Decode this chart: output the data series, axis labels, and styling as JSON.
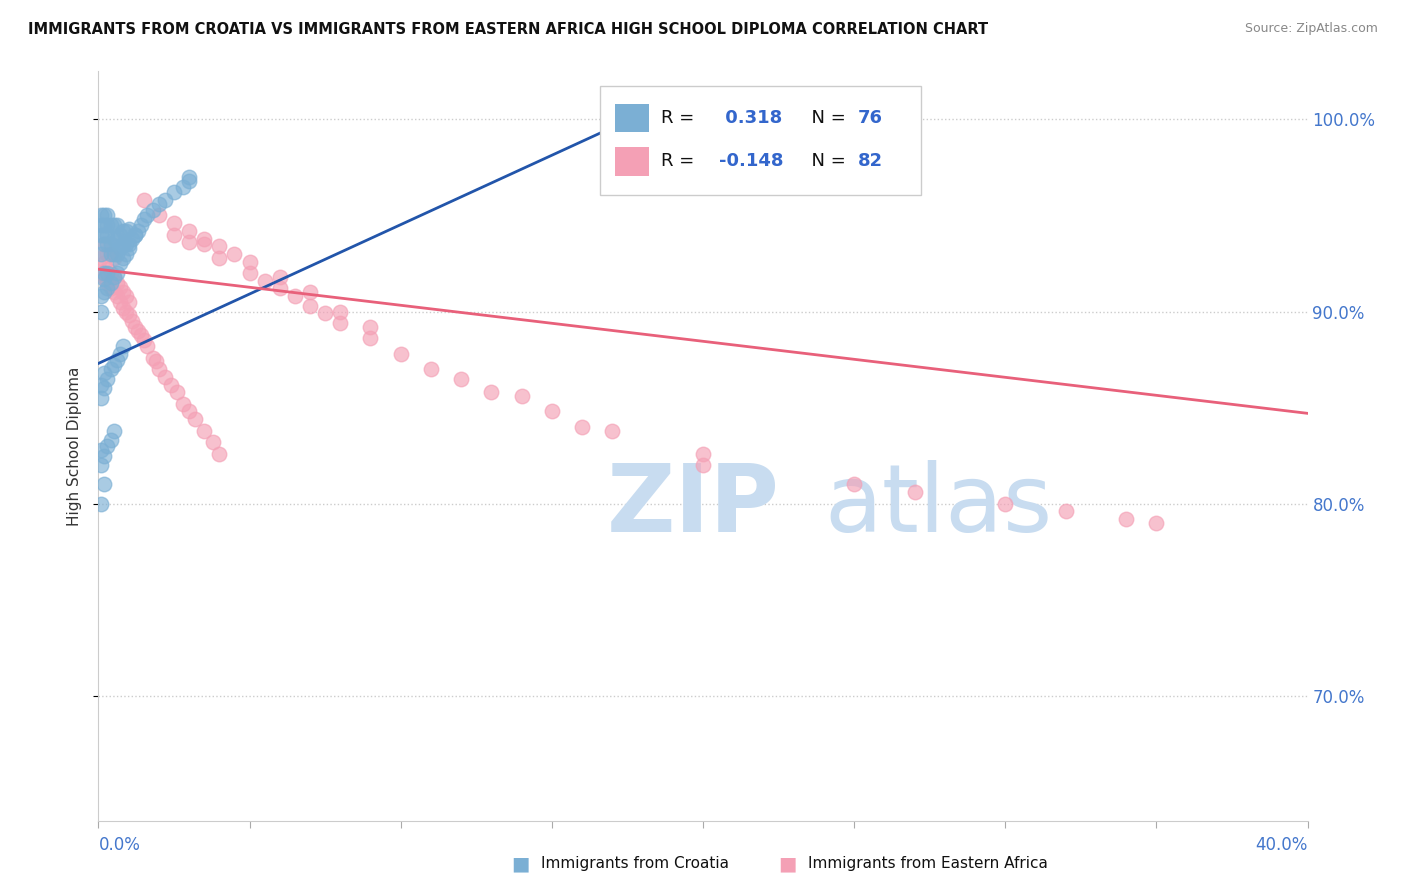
{
  "title": "IMMIGRANTS FROM CROATIA VS IMMIGRANTS FROM EASTERN AFRICA HIGH SCHOOL DIPLOMA CORRELATION CHART",
  "source": "Source: ZipAtlas.com",
  "ylabel": "High School Diploma",
  "legend1_R": "0.318",
  "legend1_N": "76",
  "legend2_R": "-0.148",
  "legend2_N": "82",
  "legend1_label": "Immigrants from Croatia",
  "legend2_label": "Immigrants from Eastern Africa",
  "blue_color": "#7BAFD4",
  "pink_color": "#F4A0B5",
  "blue_line_color": "#2255AA",
  "pink_line_color": "#E8607A",
  "xlim": [
    0.0,
    0.4
  ],
  "ylim": [
    0.635,
    1.025
  ],
  "yticks": [
    0.7,
    0.8,
    0.9,
    1.0
  ],
  "ytick_labels": [
    "70.0%",
    "80.0%",
    "90.0%",
    "100.0%"
  ],
  "blue_trend": [
    0.0,
    0.18,
    0.873,
    1.003
  ],
  "pink_trend": [
    0.0,
    0.4,
    0.922,
    0.847
  ],
  "blue_x": [
    0.001,
    0.001,
    0.001,
    0.001,
    0.002,
    0.002,
    0.002,
    0.002,
    0.002,
    0.003,
    0.003,
    0.003,
    0.003,
    0.004,
    0.004,
    0.004,
    0.005,
    0.005,
    0.005,
    0.006,
    0.006,
    0.006,
    0.007,
    0.007,
    0.008,
    0.008,
    0.009,
    0.009,
    0.01,
    0.01,
    0.011,
    0.012,
    0.013,
    0.014,
    0.015,
    0.016,
    0.018,
    0.02,
    0.022,
    0.025,
    0.028,
    0.03,
    0.001,
    0.001,
    0.002,
    0.002,
    0.003,
    0.003,
    0.004,
    0.005,
    0.006,
    0.007,
    0.008,
    0.009,
    0.01,
    0.012,
    0.001,
    0.001,
    0.002,
    0.002,
    0.003,
    0.004,
    0.005,
    0.006,
    0.007,
    0.008,
    0.001,
    0.001,
    0.002,
    0.003,
    0.004,
    0.005,
    0.001,
    0.002,
    0.17,
    0.03
  ],
  "blue_y": [
    0.94,
    0.945,
    0.95,
    0.93,
    0.935,
    0.94,
    0.945,
    0.95,
    0.92,
    0.935,
    0.94,
    0.945,
    0.95,
    0.93,
    0.935,
    0.945,
    0.93,
    0.938,
    0.945,
    0.93,
    0.938,
    0.945,
    0.933,
    0.94,
    0.935,
    0.942,
    0.935,
    0.942,
    0.935,
    0.943,
    0.938,
    0.94,
    0.942,
    0.945,
    0.948,
    0.95,
    0.953,
    0.956,
    0.958,
    0.962,
    0.965,
    0.968,
    0.9,
    0.908,
    0.91,
    0.917,
    0.912,
    0.92,
    0.915,
    0.918,
    0.92,
    0.925,
    0.928,
    0.93,
    0.933,
    0.94,
    0.855,
    0.862,
    0.86,
    0.868,
    0.865,
    0.87,
    0.872,
    0.875,
    0.878,
    0.882,
    0.82,
    0.828,
    0.825,
    0.83,
    0.833,
    0.838,
    0.8,
    0.81,
    1.0,
    0.97
  ],
  "pink_x": [
    0.001,
    0.001,
    0.002,
    0.002,
    0.002,
    0.003,
    0.003,
    0.003,
    0.004,
    0.004,
    0.004,
    0.005,
    0.005,
    0.005,
    0.006,
    0.006,
    0.007,
    0.007,
    0.008,
    0.008,
    0.009,
    0.009,
    0.01,
    0.01,
    0.011,
    0.012,
    0.013,
    0.014,
    0.015,
    0.016,
    0.018,
    0.019,
    0.02,
    0.022,
    0.024,
    0.026,
    0.028,
    0.03,
    0.032,
    0.035,
    0.038,
    0.04,
    0.025,
    0.03,
    0.035,
    0.04,
    0.05,
    0.055,
    0.06,
    0.065,
    0.07,
    0.075,
    0.08,
    0.09,
    0.1,
    0.11,
    0.13,
    0.15,
    0.17,
    0.2,
    0.25,
    0.27,
    0.3,
    0.32,
    0.34,
    0.015,
    0.02,
    0.025,
    0.03,
    0.035,
    0.04,
    0.045,
    0.05,
    0.06,
    0.07,
    0.08,
    0.09,
    0.2,
    0.14,
    0.35,
    0.16,
    0.12
  ],
  "pink_y": [
    0.92,
    0.928,
    0.918,
    0.925,
    0.935,
    0.915,
    0.922,
    0.93,
    0.912,
    0.92,
    0.93,
    0.91,
    0.918,
    0.928,
    0.908,
    0.915,
    0.905,
    0.913,
    0.902,
    0.91,
    0.9,
    0.908,
    0.898,
    0.905,
    0.895,
    0.892,
    0.89,
    0.888,
    0.885,
    0.882,
    0.876,
    0.874,
    0.87,
    0.866,
    0.862,
    0.858,
    0.852,
    0.848,
    0.844,
    0.838,
    0.832,
    0.826,
    0.94,
    0.936,
    0.935,
    0.928,
    0.92,
    0.916,
    0.912,
    0.908,
    0.903,
    0.899,
    0.894,
    0.886,
    0.878,
    0.87,
    0.858,
    0.848,
    0.838,
    0.826,
    0.81,
    0.806,
    0.8,
    0.796,
    0.792,
    0.958,
    0.95,
    0.946,
    0.942,
    0.938,
    0.934,
    0.93,
    0.926,
    0.918,
    0.91,
    0.9,
    0.892,
    0.82,
    0.856,
    0.79,
    0.84,
    0.865
  ]
}
